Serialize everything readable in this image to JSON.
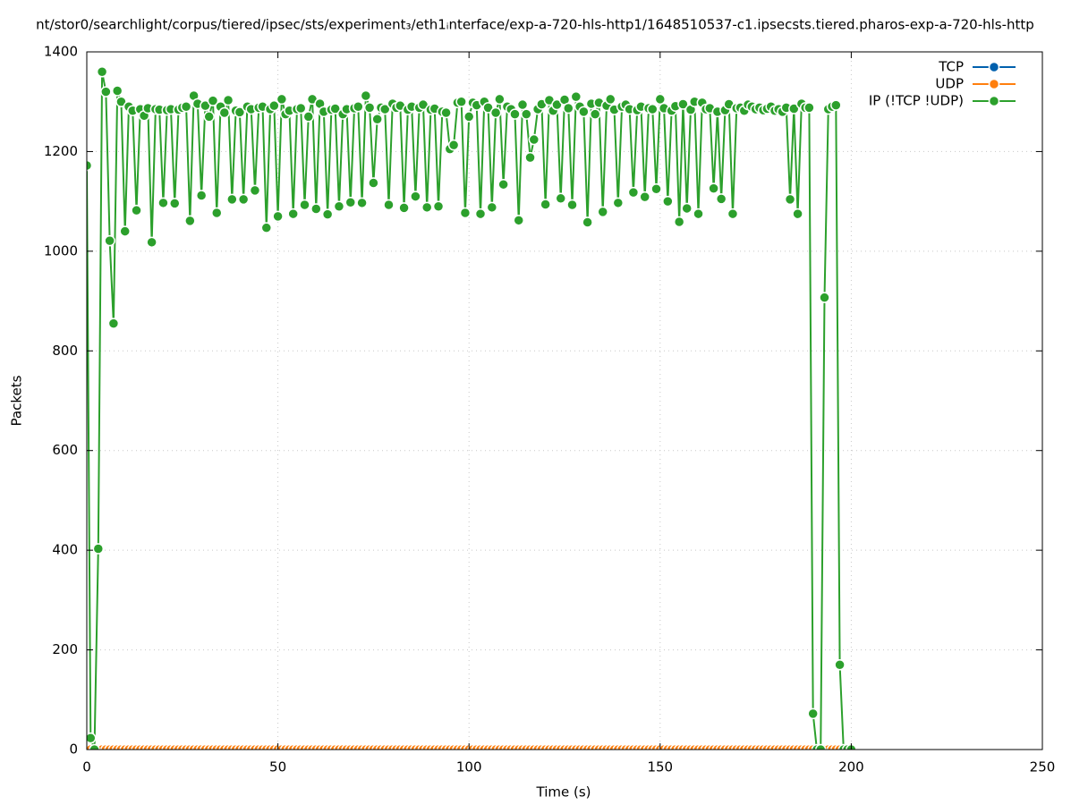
{
  "chart_data": {
    "type": "line",
    "title": "nt/stor0/searchlight/corpus/tiered/ipsec/sts/experiment₃/eth1ᵢnterface/exp-a-720-hls-http1/1648510537-c1.ipsecsts.tiered.pharos-exp-a-720-hls-http",
    "x_label": "Time (s)",
    "y_label": "Packets",
    "xlim": [
      0,
      250
    ],
    "xticks": [
      0,
      50,
      100,
      150,
      200,
      250
    ],
    "ylim": [
      0,
      1400
    ],
    "yticks": [
      0,
      200,
      400,
      600,
      800,
      1000,
      1200,
      1400
    ],
    "grid": true,
    "legend": "top-right",
    "x": [
      0,
      1,
      2,
      3,
      4,
      5,
      6,
      7,
      8,
      9,
      10,
      11,
      12,
      13,
      14,
      15,
      16,
      17,
      18,
      19,
      20,
      21,
      22,
      23,
      24,
      25,
      26,
      27,
      28,
      29,
      30,
      31,
      32,
      33,
      34,
      35,
      36,
      37,
      38,
      39,
      40,
      41,
      42,
      43,
      44,
      45,
      46,
      47,
      48,
      49,
      50,
      51,
      52,
      53,
      54,
      55,
      56,
      57,
      58,
      59,
      60,
      61,
      62,
      63,
      64,
      65,
      66,
      67,
      68,
      69,
      70,
      71,
      72,
      73,
      74,
      75,
      76,
      77,
      78,
      79,
      80,
      81,
      82,
      83,
      84,
      85,
      86,
      87,
      88,
      89,
      90,
      91,
      92,
      93,
      94,
      95,
      96,
      97,
      98,
      99,
      100,
      101,
      102,
      103,
      104,
      105,
      106,
      107,
      108,
      109,
      110,
      111,
      112,
      113,
      114,
      115,
      116,
      117,
      118,
      119,
      120,
      121,
      122,
      123,
      124,
      125,
      126,
      127,
      128,
      129,
      130,
      131,
      132,
      133,
      134,
      135,
      136,
      137,
      138,
      139,
      140,
      141,
      142,
      143,
      144,
      145,
      146,
      147,
      148,
      149,
      150,
      151,
      152,
      153,
      154,
      155,
      156,
      157,
      158,
      159,
      160,
      161,
      162,
      163,
      164,
      165,
      166,
      167,
      168,
      169,
      170,
      171,
      172,
      173,
      174,
      175,
      176,
      177,
      178,
      179,
      180,
      181,
      182,
      183,
      184,
      185,
      186,
      187,
      188,
      189,
      190,
      191,
      192,
      193,
      194,
      195,
      196,
      197,
      198,
      199,
      200
    ],
    "series": [
      {
        "name": "TCP",
        "color": "#0060ad",
        "values": [
          0,
          0,
          0,
          0,
          0,
          0,
          0,
          0,
          0,
          0,
          0,
          0,
          0,
          0,
          0,
          0,
          0,
          0,
          0,
          0,
          0,
          0,
          0,
          0,
          0,
          0,
          0,
          0,
          0,
          0,
          0,
          0,
          0,
          0,
          0,
          0,
          0,
          0,
          0,
          0,
          0,
          0,
          0,
          0,
          0,
          0,
          0,
          0,
          0,
          0,
          0,
          0,
          0,
          0,
          0,
          0,
          0,
          0,
          0,
          0,
          0,
          0,
          0,
          0,
          0,
          0,
          0,
          0,
          0,
          0,
          0,
          0,
          0,
          0,
          0,
          0,
          0,
          0,
          0,
          0,
          0,
          0,
          0,
          0,
          0,
          0,
          0,
          0,
          0,
          0,
          0,
          0,
          0,
          0,
          0,
          0,
          0,
          0,
          0,
          0,
          0,
          0,
          0,
          0,
          0,
          0,
          0,
          0,
          0,
          0,
          0,
          0,
          0,
          0,
          0,
          0,
          0,
          0,
          0,
          0,
          0,
          0,
          0,
          0,
          0,
          0,
          0,
          0,
          0,
          0,
          0,
          0,
          0,
          0,
          0,
          0,
          0,
          0,
          0,
          0,
          0,
          0,
          0,
          0,
          0,
          0,
          0,
          0,
          0,
          0,
          0,
          0,
          0,
          0,
          0,
          0,
          0,
          0,
          0,
          0,
          0,
          0,
          0,
          0,
          0,
          0,
          0,
          0,
          0,
          0,
          0,
          0,
          0,
          0,
          0,
          0,
          0,
          0,
          0,
          0,
          0,
          0,
          0,
          0,
          0,
          0,
          0,
          0,
          0,
          0,
          0,
          0,
          0,
          0,
          0,
          0,
          0,
          0,
          0,
          0,
          0
        ]
      },
      {
        "name": "UDP",
        "color": "#ff7f0e",
        "values": [
          0,
          0,
          0,
          0,
          0,
          0,
          0,
          0,
          0,
          0,
          0,
          0,
          0,
          0,
          0,
          0,
          0,
          0,
          0,
          0,
          0,
          0,
          0,
          0,
          0,
          0,
          0,
          0,
          0,
          0,
          0,
          0,
          0,
          0,
          0,
          0,
          0,
          0,
          0,
          0,
          0,
          0,
          0,
          0,
          0,
          0,
          0,
          0,
          0,
          0,
          0,
          0,
          0,
          0,
          0,
          0,
          0,
          0,
          0,
          0,
          0,
          0,
          0,
          0,
          0,
          0,
          0,
          0,
          0,
          0,
          0,
          0,
          0,
          0,
          0,
          0,
          0,
          0,
          0,
          0,
          0,
          0,
          0,
          0,
          0,
          0,
          0,
          0,
          0,
          0,
          0,
          0,
          0,
          0,
          0,
          0,
          0,
          0,
          0,
          0,
          0,
          0,
          0,
          0,
          0,
          0,
          0,
          0,
          0,
          0,
          0,
          0,
          0,
          0,
          0,
          0,
          0,
          0,
          0,
          0,
          0,
          0,
          0,
          0,
          0,
          0,
          0,
          0,
          0,
          0,
          0,
          0,
          0,
          0,
          0,
          0,
          0,
          0,
          0,
          0,
          0,
          0,
          0,
          0,
          0,
          0,
          0,
          0,
          0,
          0,
          0,
          0,
          0,
          0,
          0,
          0,
          0,
          0,
          0,
          0,
          0,
          0,
          0,
          0,
          0,
          0,
          0,
          0,
          0,
          0,
          0,
          0,
          0,
          0,
          0,
          0,
          0,
          0,
          0,
          0,
          0,
          0,
          0,
          0,
          0,
          0,
          0,
          0,
          0,
          0,
          0,
          0,
          0,
          0,
          0,
          0,
          0,
          0,
          0,
          0,
          0
        ]
      },
      {
        "name": "IP (!TCP  !UDP)",
        "color": "#2ca02c",
        "values": [
          1172,
          23,
          0,
          403,
          1360,
          1320,
          1021,
          855,
          1322,
          1300,
          1040,
          1290,
          1282,
          1082,
          1285,
          1272,
          1287,
          1018,
          1285,
          1284,
          1097,
          1283,
          1285,
          1096,
          1284,
          1288,
          1290,
          1061,
          1312,
          1296,
          1112,
          1292,
          1270,
          1302,
          1077,
          1290,
          1278,
          1303,
          1104,
          1282,
          1279,
          1104,
          1290,
          1285,
          1122,
          1288,
          1290,
          1047,
          1285,
          1292,
          1070,
          1305,
          1275,
          1282,
          1075,
          1285,
          1287,
          1093,
          1270,
          1305,
          1085,
          1296,
          1280,
          1074,
          1284,
          1286,
          1090,
          1275,
          1285,
          1098,
          1287,
          1290,
          1097,
          1312,
          1288,
          1137,
          1265,
          1288,
          1285,
          1093,
          1296,
          1288,
          1292,
          1087,
          1284,
          1290,
          1110,
          1288,
          1294,
          1088,
          1284,
          1286,
          1090,
          1280,
          1278,
          1205,
          1213,
          1298,
          1300,
          1077,
          1270,
          1298,
          1293,
          1075,
          1300,
          1288,
          1088,
          1278,
          1305,
          1134,
          1290,
          1285,
          1275,
          1062,
          1294,
          1275,
          1188,
          1224,
          1285,
          1295,
          1094,
          1303,
          1282,
          1294,
          1106,
          1304,
          1287,
          1093,
          1310,
          1290,
          1280,
          1058,
          1296,
          1275,
          1298,
          1079,
          1292,
          1305,
          1284,
          1097,
          1290,
          1294,
          1285,
          1118,
          1283,
          1290,
          1109,
          1287,
          1285,
          1125,
          1305,
          1287,
          1100,
          1282,
          1291,
          1059,
          1295,
          1086,
          1284,
          1300,
          1075,
          1298,
          1285,
          1287,
          1126,
          1280,
          1105,
          1283,
          1295,
          1075,
          1287,
          1288,
          1282,
          1294,
          1290,
          1285,
          1288,
          1283,
          1286,
          1290,
          1282,
          1285,
          1280,
          1288,
          1104,
          1286,
          1075,
          1296,
          1288,
          1288,
          72,
          0,
          0,
          907,
          1285,
          1290,
          1293,
          170,
          0,
          0,
          0
        ]
      }
    ]
  }
}
